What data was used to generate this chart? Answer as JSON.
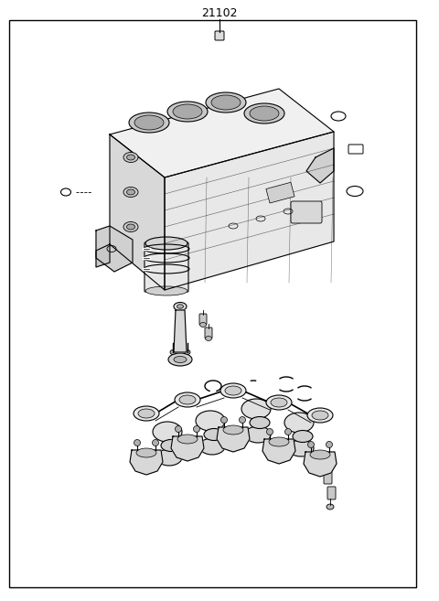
{
  "title": "21102",
  "background_color": "#ffffff",
  "border_color": "#000000",
  "line_color": "#000000",
  "fig_width": 4.8,
  "fig_height": 6.57,
  "dpi": 100
}
